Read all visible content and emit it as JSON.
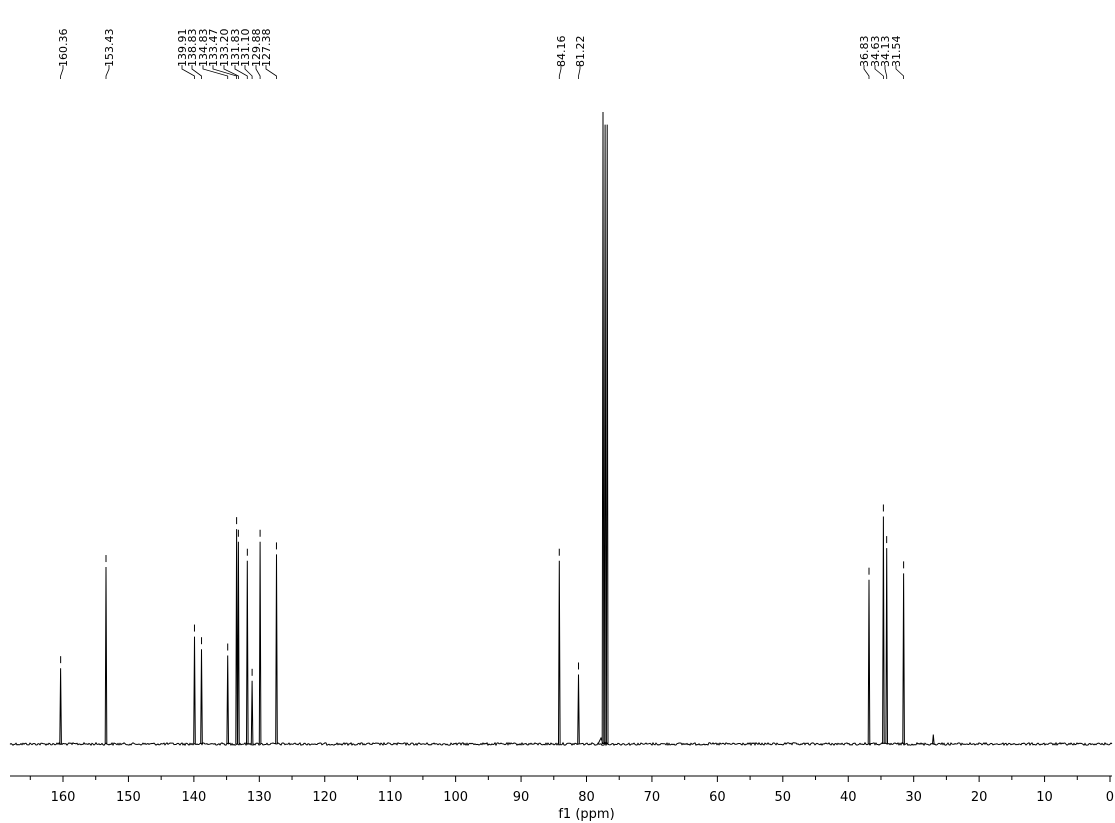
{
  "chart_data": {
    "type": "line",
    "title": "",
    "xlabel": "f1 (ppm)",
    "ylabel": "",
    "xlim": [
      170,
      0
    ],
    "x_reversed": true,
    "x_ticks": [
      160,
      150,
      140,
      130,
      120,
      110,
      100,
      90,
      80,
      70,
      60,
      50,
      40,
      30,
      20,
      10,
      0
    ],
    "grid": false,
    "legend": "none",
    "peak_labels": [
      "160.36",
      "153.43",
      "139.91",
      "138.83",
      "134.83",
      "133.47",
      "133.20",
      "131.83",
      "131.10",
      "129.88",
      "127.38",
      "84.16",
      "81.22",
      "36.83",
      "34.63",
      "34.13",
      "31.54"
    ],
    "series": [
      {
        "peaks": [
          {
            "x": 160.36,
            "y": 0.12
          },
          {
            "x": 153.43,
            "y": 0.28
          },
          {
            "x": 139.91,
            "y": 0.17
          },
          {
            "x": 138.83,
            "y": 0.15
          },
          {
            "x": 134.83,
            "y": 0.14
          },
          {
            "x": 133.47,
            "y": 0.34
          },
          {
            "x": 133.2,
            "y": 0.32
          },
          {
            "x": 131.83,
            "y": 0.29
          },
          {
            "x": 131.1,
            "y": 0.1
          },
          {
            "x": 129.88,
            "y": 0.32
          },
          {
            "x": 127.38,
            "y": 0.3
          },
          {
            "x": 84.16,
            "y": 0.29
          },
          {
            "x": 81.22,
            "y": 0.11
          },
          {
            "x": 77.48,
            "y": 1.0
          },
          {
            "x": 77.16,
            "y": 0.98
          },
          {
            "x": 76.84,
            "y": 0.98
          },
          {
            "x": 36.83,
            "y": 0.26
          },
          {
            "x": 34.63,
            "y": 0.36
          },
          {
            "x": 34.13,
            "y": 0.31
          },
          {
            "x": 31.54,
            "y": 0.27
          },
          {
            "x": 27.0,
            "y": 0.015
          }
        ]
      }
    ],
    "colors": {
      "trace": "#000000",
      "axis": "#000000"
    }
  }
}
